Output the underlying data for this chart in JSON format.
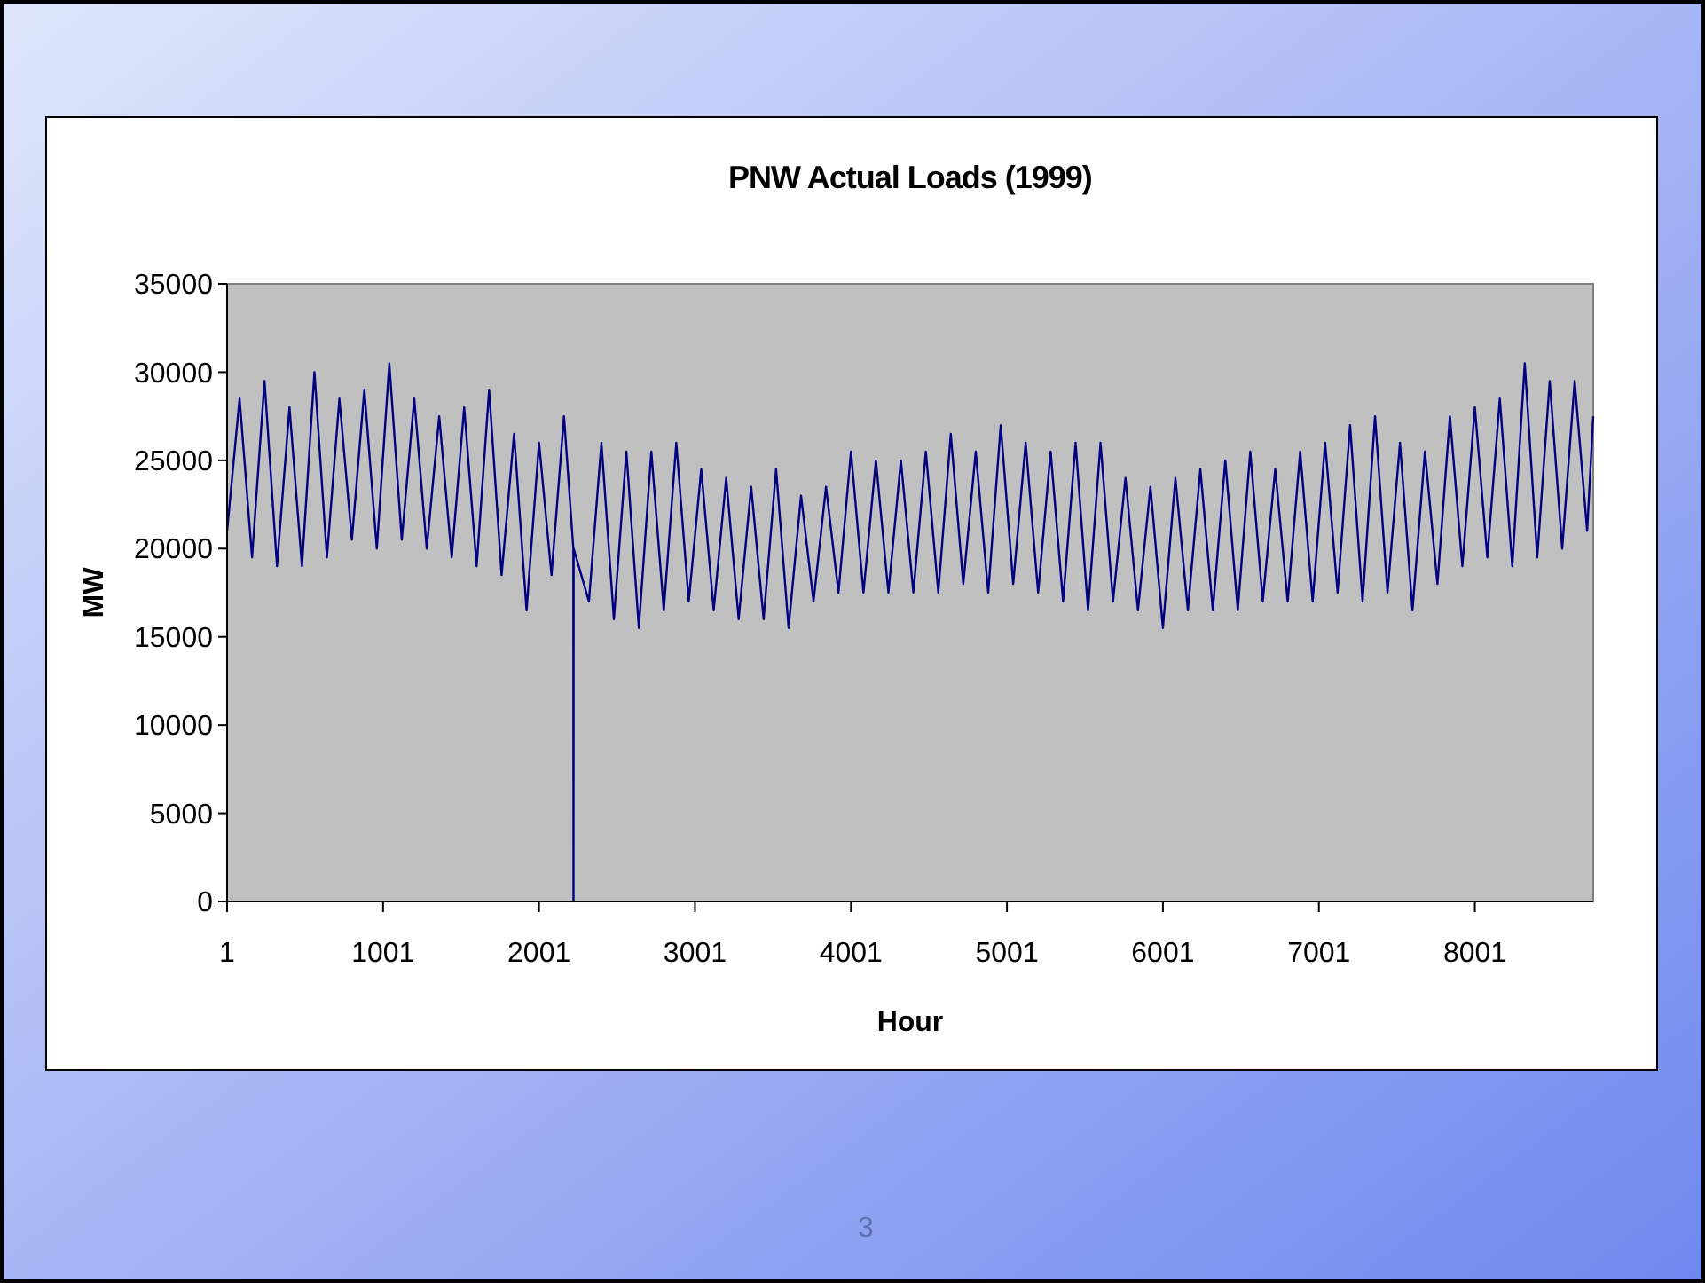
{
  "chart_data": {
    "type": "line",
    "title": "PNW Actual Loads (1999)",
    "xlabel": "Hour",
    "ylabel": "MW",
    "xlim": [
      1,
      8760
    ],
    "xticks": [
      1,
      1001,
      2001,
      3001,
      4001,
      5001,
      6001,
      7001,
      8001
    ],
    "ylim": [
      0,
      35000
    ],
    "yticks": [
      0,
      5000,
      10000,
      15000,
      20000,
      25000,
      30000,
      35000
    ],
    "grid": false,
    "marker": "none",
    "line_style": "solid",
    "annotations": [
      "3"
    ],
    "series": [
      {
        "color": "#000080",
        "x": [
          1,
          81,
          161,
          241,
          321,
          401,
          481,
          561,
          641,
          721,
          801,
          881,
          961,
          1041,
          1121,
          1201,
          1281,
          1361,
          1441,
          1521,
          1601,
          1681,
          1761,
          1841,
          1921,
          2001,
          2081,
          2161,
          2221,
          2222,
          2223,
          2321,
          2401,
          2481,
          2561,
          2641,
          2721,
          2801,
          2881,
          2961,
          3041,
          3121,
          3201,
          3281,
          3361,
          3441,
          3521,
          3601,
          3681,
          3761,
          3841,
          3921,
          4001,
          4081,
          4161,
          4241,
          4321,
          4401,
          4481,
          4561,
          4641,
          4721,
          4801,
          4881,
          4961,
          5041,
          5121,
          5201,
          5281,
          5361,
          5441,
          5521,
          5601,
          5681,
          5761,
          5841,
          5921,
          6001,
          6081,
          6161,
          6241,
          6321,
          6401,
          6481,
          6561,
          6641,
          6721,
          6801,
          6881,
          6961,
          7041,
          7121,
          7201,
          7281,
          7361,
          7441,
          7521,
          7601,
          7681,
          7761,
          7841,
          7921,
          8001,
          8081,
          8161,
          8241,
          8321,
          8401,
          8481,
          8561,
          8641,
          8721,
          8760
        ],
        "values": [
          21000,
          28500,
          19500,
          29500,
          19000,
          28000,
          19000,
          30000,
          19500,
          28500,
          20500,
          29000,
          20000,
          30500,
          20500,
          28500,
          20000,
          27500,
          19500,
          28000,
          19000,
          29000,
          18500,
          26500,
          16500,
          26000,
          18500,
          27500,
          20000,
          0,
          20000,
          17000,
          26000,
          16000,
          25500,
          15500,
          25500,
          16500,
          26000,
          17000,
          24500,
          16500,
          24000,
          16000,
          23500,
          16000,
          24500,
          15500,
          23000,
          17000,
          23500,
          17500,
          25500,
          17500,
          25000,
          17500,
          25000,
          17500,
          25500,
          17500,
          26500,
          18000,
          25500,
          17500,
          27000,
          18000,
          26000,
          17500,
          25500,
          17000,
          26000,
          16500,
          26000,
          17000,
          24000,
          16500,
          23500,
          15500,
          24000,
          16500,
          24500,
          16500,
          25000,
          16500,
          25500,
          17000,
          24500,
          17000,
          25500,
          17000,
          26000,
          17500,
          27000,
          17000,
          27500,
          17500,
          26000,
          16500,
          25500,
          18000,
          27500,
          19000,
          28000,
          19500,
          28500,
          19000,
          30500,
          19500,
          29500,
          20000,
          29500,
          21000,
          27500
        ]
      }
    ]
  }
}
